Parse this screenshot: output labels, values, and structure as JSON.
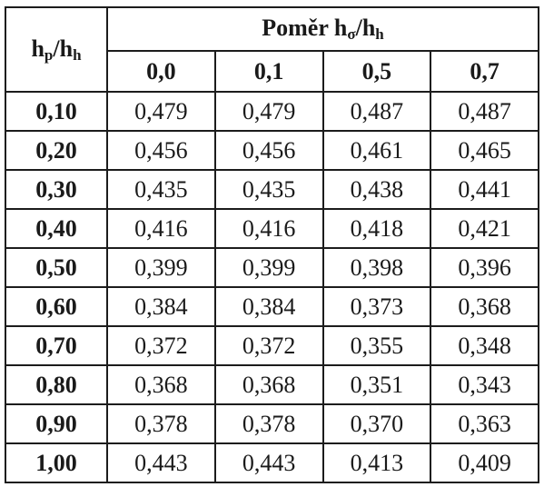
{
  "table": {
    "corner": {
      "main": "h",
      "sub1": "p",
      "slash": "/h",
      "sub2": "h"
    },
    "group_header": {
      "prefix": "Poměr h",
      "sub1": "σ",
      "slash": "/h",
      "sub2": "h"
    },
    "columns": [
      "0,0",
      "0,1",
      "0,5",
      "0,7"
    ],
    "rows": [
      {
        "label": "0,10",
        "values": [
          "0,479",
          "0,479",
          "0,487",
          "0,487"
        ]
      },
      {
        "label": "0,20",
        "values": [
          "0,456",
          "0,456",
          "0,461",
          "0,465"
        ]
      },
      {
        "label": "0,30",
        "values": [
          "0,435",
          "0,435",
          "0,438",
          "0,441"
        ]
      },
      {
        "label": "0,40",
        "values": [
          "0,416",
          "0,416",
          "0,418",
          "0,421"
        ]
      },
      {
        "label": "0,50",
        "values": [
          "0,399",
          "0,399",
          "0,398",
          "0,396"
        ]
      },
      {
        "label": "0,60",
        "values": [
          "0,384",
          "0,384",
          "0,373",
          "0,368"
        ]
      },
      {
        "label": "0,70",
        "values": [
          "0,372",
          "0,372",
          "0,355",
          "0,348"
        ]
      },
      {
        "label": "0,80",
        "values": [
          "0,368",
          "0,368",
          "0,351",
          "0,343"
        ]
      },
      {
        "label": "0,90",
        "values": [
          "0,378",
          "0,378",
          "0,370",
          "0,363"
        ]
      },
      {
        "label": "1,00",
        "values": [
          "0,443",
          "0,443",
          "0,413",
          "0,409"
        ]
      }
    ]
  }
}
